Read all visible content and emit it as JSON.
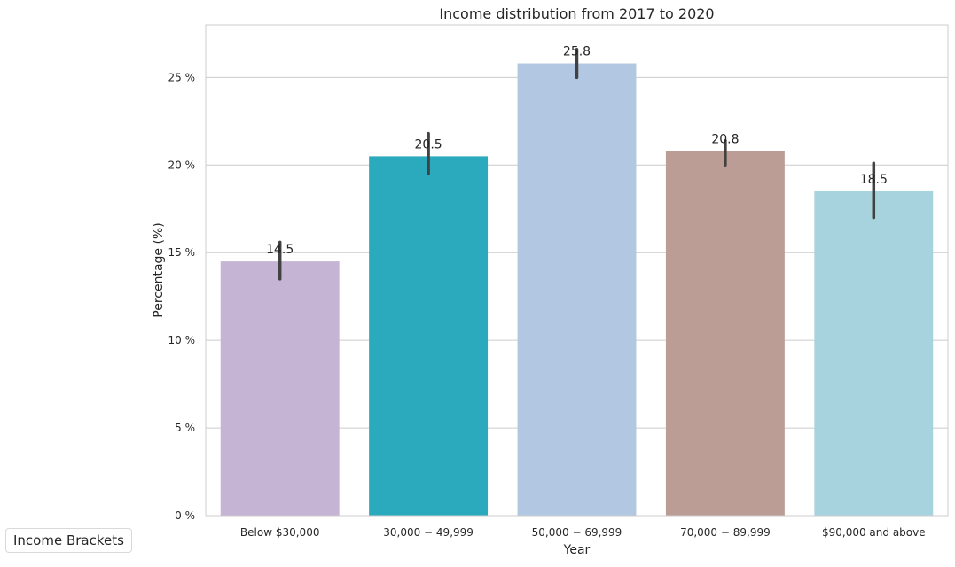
{
  "chart_data": {
    "type": "bar",
    "title": "Income distribution from 2017 to 2020",
    "xlabel": "Year",
    "ylabel": "Percentage (%)",
    "categories": [
      "Below $30,000",
      "30,000 − 49,999",
      "50,000 − 69,999",
      "70,000 − 89,999",
      "$90,000 and above"
    ],
    "values": [
      14.5,
      20.5,
      25.8,
      20.8,
      18.5
    ],
    "value_labels": [
      "14.5",
      "20.5",
      "25.8",
      "20.8",
      "18.5"
    ],
    "error_low": [
      13.5,
      19.5,
      25.0,
      20.0,
      17.0
    ],
    "error_high": [
      15.6,
      21.8,
      26.6,
      21.4,
      20.1
    ],
    "colors": [
      "#c5b4d3",
      "#2aaabc",
      "#b2c8e2",
      "#bb9d95",
      "#a6d3dd"
    ],
    "ylim": [
      0,
      28
    ],
    "yticks": [
      0,
      5,
      10,
      15,
      20,
      25
    ],
    "ytick_labels": [
      "0 %",
      "5 %",
      "10 %",
      "15 %",
      "20 %",
      "25 %"
    ],
    "grid": "horizontal",
    "legend": {
      "title": "Income Brackets",
      "position": "bottom-left"
    }
  }
}
